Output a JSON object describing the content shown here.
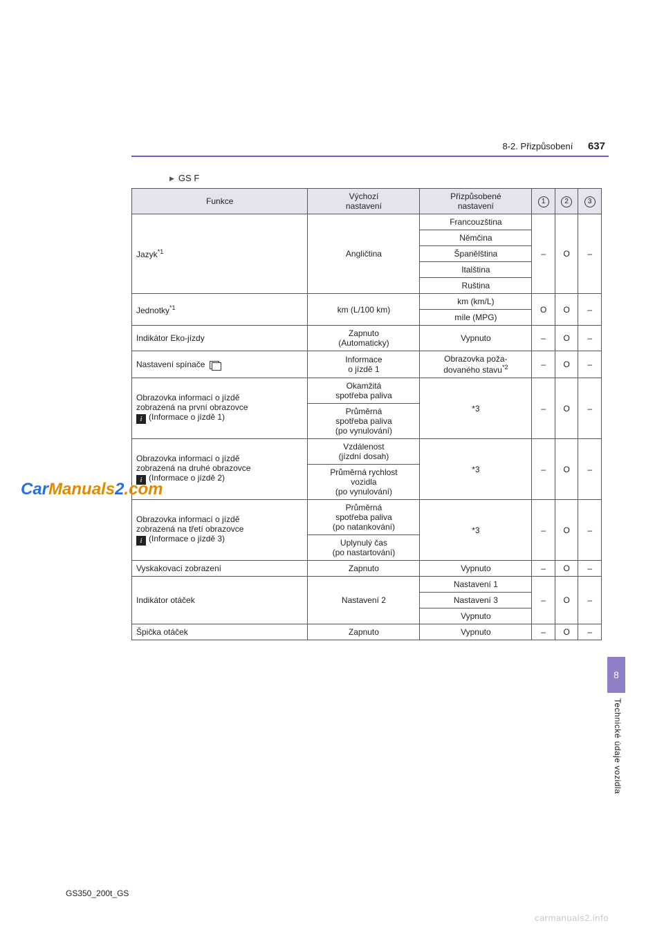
{
  "header": {
    "section": "8-2. Přizpůsobení",
    "page_number": "637"
  },
  "model_label": "GS F",
  "table": {
    "headers": {
      "function": "Funkce",
      "default": "Výchozí\nnastavení",
      "custom": "Přizpůsobené\nnastavení",
      "c1": "1",
      "c2": "2",
      "c3": "3"
    },
    "rows": {
      "lang": {
        "func": "Jazyk",
        "func_sup": "*1",
        "default": "Angličtina",
        "opts": [
          "Francouzština",
          "Němčina",
          "Španělština",
          "Italština",
          "Ruština"
        ],
        "marks": [
          "–",
          "O",
          "–"
        ]
      },
      "units": {
        "func": "Jednotky",
        "func_sup": "*1",
        "default": "km (L/100 km)",
        "opts": [
          "km (km/L)",
          "míle (MPG)"
        ],
        "marks": [
          "O",
          "O",
          "–"
        ]
      },
      "eco": {
        "func": "Indikátor Eko-jízdy",
        "default": "Zapnuto\n(Automaticky)",
        "custom": "Vypnuto",
        "marks": [
          "–",
          "O",
          "–"
        ]
      },
      "switch": {
        "func": "Nastavení spínače",
        "default": "Informace\no jízdě 1",
        "custom_prefix": "Obrazovka poža-\ndovaného stavu",
        "custom_sup": "*2",
        "marks": [
          "–",
          "O",
          "–"
        ]
      },
      "trip1": {
        "func_l1": "Obrazovka informací o jízdě",
        "func_l2": "zobrazená na první obrazovce",
        "func_l3": "(Informace o jízdě 1)",
        "defaults": [
          "Okamžitá\nspotřeba paliva",
          "Průměrná\nspotřeba paliva\n(po vynulování)"
        ],
        "custom": "*3",
        "marks": [
          "–",
          "O",
          "–"
        ]
      },
      "trip2": {
        "func_l1": "Obrazovka informací o jízdě",
        "func_l2": "zobrazená na druhé obrazovce",
        "func_l3": "(Informace o jízdě 2)",
        "defaults": [
          "Vzdálenost\n(jízdní dosah)",
          "Průměrná rychlost\nvozidla\n(po vynulování)"
        ],
        "custom": "*3",
        "marks": [
          "–",
          "O",
          "–"
        ]
      },
      "trip3": {
        "func_l1": "Obrazovka informací o jízdě",
        "func_l2": "zobrazená na třetí obrazovce",
        "func_l3": "(Informace o jízdě 3)",
        "defaults": [
          "Průměrná\nspotřeba paliva\n(po natankování)",
          "Uplynulý čas\n(po nastartování)"
        ],
        "custom": "*3",
        "marks": [
          "–",
          "O",
          "–"
        ]
      },
      "popup": {
        "func": "Vyskakovací zobrazení",
        "default": "Zapnuto",
        "custom": "Vypnuto",
        "marks": [
          "–",
          "O",
          "–"
        ]
      },
      "tach": {
        "func": "Indikátor otáček",
        "default": "Nastavení 2",
        "opts": [
          "Nastavení 1",
          "Nastavení 3",
          "Vypnuto"
        ],
        "marks": [
          "–",
          "O",
          "–"
        ]
      },
      "peak": {
        "func": "Špička otáček",
        "default": "Zapnuto",
        "custom": "Vypnuto",
        "marks": [
          "–",
          "O",
          "–"
        ]
      }
    }
  },
  "side": {
    "tab": "8",
    "label": "Technické údaje vozidla"
  },
  "footer": {
    "left": "GS350_200t_GS",
    "right": "carmanuals2.info"
  },
  "watermark": {
    "p1": "Car",
    "p2": "Manuals",
    "p3": "2",
    "p4": ".com"
  }
}
